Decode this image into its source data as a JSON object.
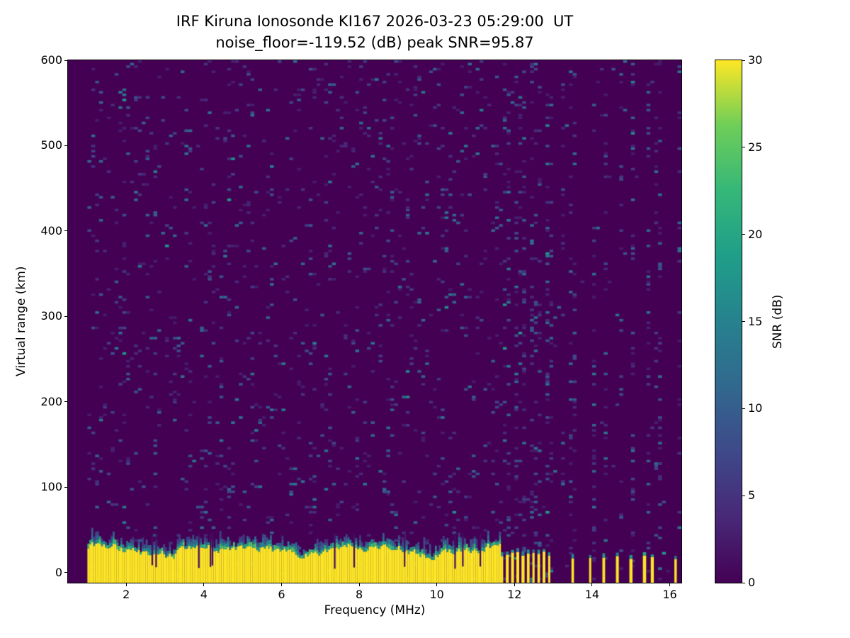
{
  "chart_data": {
    "type": "heatmap",
    "title_line1": "IRF Kiruna Ionosonde KI167 2026-03-23 05:29:00  UT",
    "title_line2": "noise_floor=-119.52 (dB) peak SNR=95.87",
    "station": "IRF Kiruna Ionosonde KI167",
    "timestamp_ut": "2026-03-23 05:29:00",
    "noise_floor_db": -119.52,
    "peak_snr_db": 95.87,
    "xlabel": "Frequency (MHz)",
    "ylabel": "Virtual range (km)",
    "colorbar_label": "SNR (dB)",
    "x_ticks": [
      2,
      4,
      6,
      8,
      10,
      12,
      14,
      16
    ],
    "y_ticks": [
      0,
      100,
      200,
      300,
      400,
      500,
      600
    ],
    "colorbar_ticks": [
      0,
      5,
      10,
      15,
      20,
      25,
      30
    ],
    "xlim": [
      0.5,
      16.3
    ],
    "ylim": [
      -12,
      600
    ],
    "clim": [
      0,
      30
    ],
    "colormap": "viridis",
    "viridis_stops": [
      [
        0.0,
        "#440154"
      ],
      [
        0.125,
        "#482878"
      ],
      [
        0.25,
        "#3e4989"
      ],
      [
        0.375,
        "#31688e"
      ],
      [
        0.5,
        "#26828e"
      ],
      [
        0.625,
        "#1f9e89"
      ],
      [
        0.75,
        "#35b779"
      ],
      [
        0.875,
        "#6ece58"
      ],
      [
        1.0,
        "#fde725"
      ]
    ],
    "data_freq_range_mhz": [
      1.0,
      16.35
    ],
    "noise": {
      "background_snr_db": 0,
      "speckle_snr_db_range": [
        2,
        14
      ],
      "speckle_density": 0.05
    },
    "ground_echo": {
      "description": "Saturated ground echo band at 0-40 km virtual range, saturating colour scale",
      "snr_db": 30,
      "continuous_range_mhz": [
        1.0,
        11.62
      ],
      "band_top_km_range": [
        18,
        42
      ],
      "bar_region_mhz": [
        11.68,
        13.02
      ],
      "bar_period_mhz": 0.135,
      "bar_halfwidth_mhz": 0.035,
      "sparse_bar_freqs_mhz": [
        13.5,
        13.95,
        14.3,
        14.65,
        15.0,
        15.35,
        15.55,
        16.15
      ],
      "extra_noise_stripe_freqs_mhz": [
        13.2,
        13.35,
        15.7,
        16.3
      ]
    }
  }
}
